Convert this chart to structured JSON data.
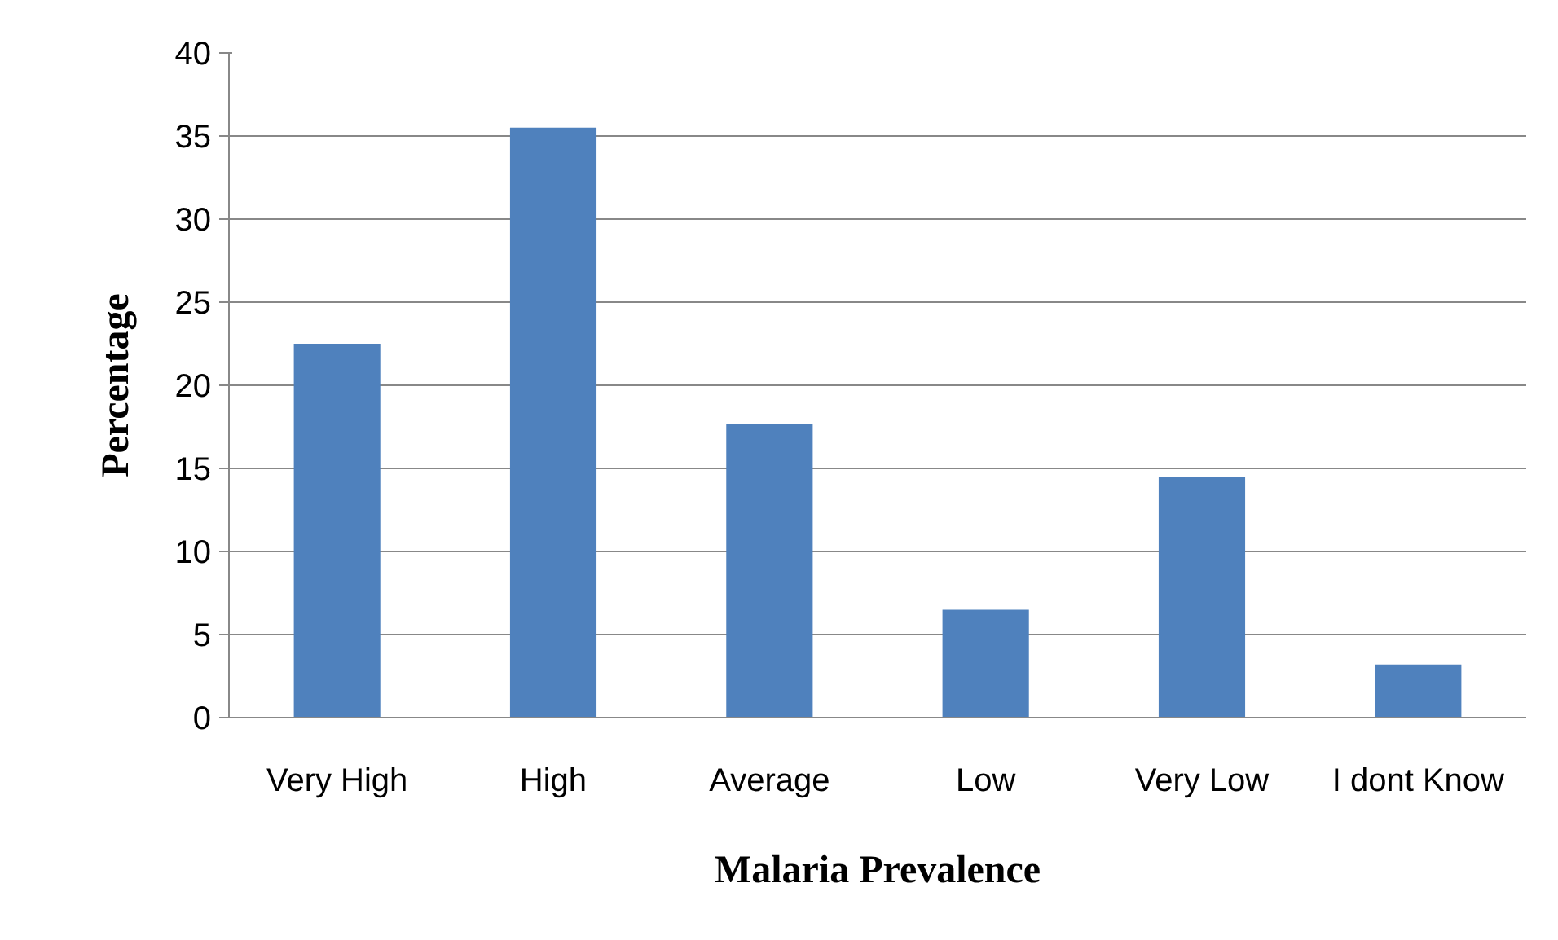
{
  "chart_data": {
    "type": "bar",
    "xlabel": "Malaria Prevalence",
    "ylabel": "Percentage",
    "categories": [
      "Very High",
      "High",
      "Average",
      "Low",
      "Very Low",
      "I dont Know"
    ],
    "values": [
      22.5,
      35.5,
      17.7,
      6.5,
      14.5,
      3.2
    ],
    "color": "#4f81bd",
    "ylim": [
      0,
      40
    ],
    "yticks": [
      0,
      5,
      10,
      15,
      20,
      25,
      30,
      35,
      40
    ],
    "grid": "y"
  }
}
